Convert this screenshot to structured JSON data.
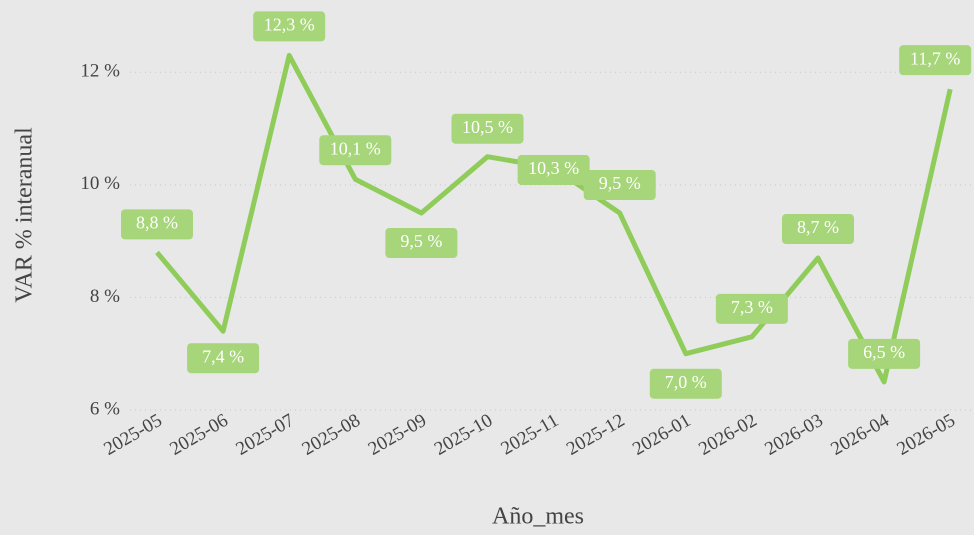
{
  "chart_data": {
    "type": "line",
    "x_label": "Año_mes",
    "y_label": "VAR % interanual",
    "categories": [
      "2025-05",
      "2025-06",
      "2025-07",
      "2025-08",
      "2025-09",
      "2025-10",
      "2025-11",
      "2025-12",
      "2026-01",
      "2026-02",
      "2026-03",
      "2026-04",
      "2026-05"
    ],
    "series": [
      {
        "name": "VAR % interanual",
        "color": "#8fcc5a",
        "values": [
          8.8,
          7.4,
          12.3,
          10.1,
          9.5,
          10.5,
          10.3,
          9.5,
          7.0,
          7.3,
          8.7,
          6.5,
          11.7
        ],
        "value_labels": [
          "8,8 %",
          "7,4 %",
          "12,3 %",
          "10,1 %",
          "9,5 %",
          "10,5 %",
          "10,3 %",
          "9,5 %",
          "7,0 %",
          "7,3 %",
          "8,7 %",
          "6,5 %",
          "11,7 %"
        ]
      }
    ],
    "ylim": [
      6,
      13
    ],
    "yticks": [
      {
        "value": 6,
        "label": "6 %"
      },
      {
        "value": 8,
        "label": "8 %"
      },
      {
        "value": 10,
        "label": "10 %"
      },
      {
        "value": 12,
        "label": "12 %"
      }
    ],
    "grid": true
  }
}
